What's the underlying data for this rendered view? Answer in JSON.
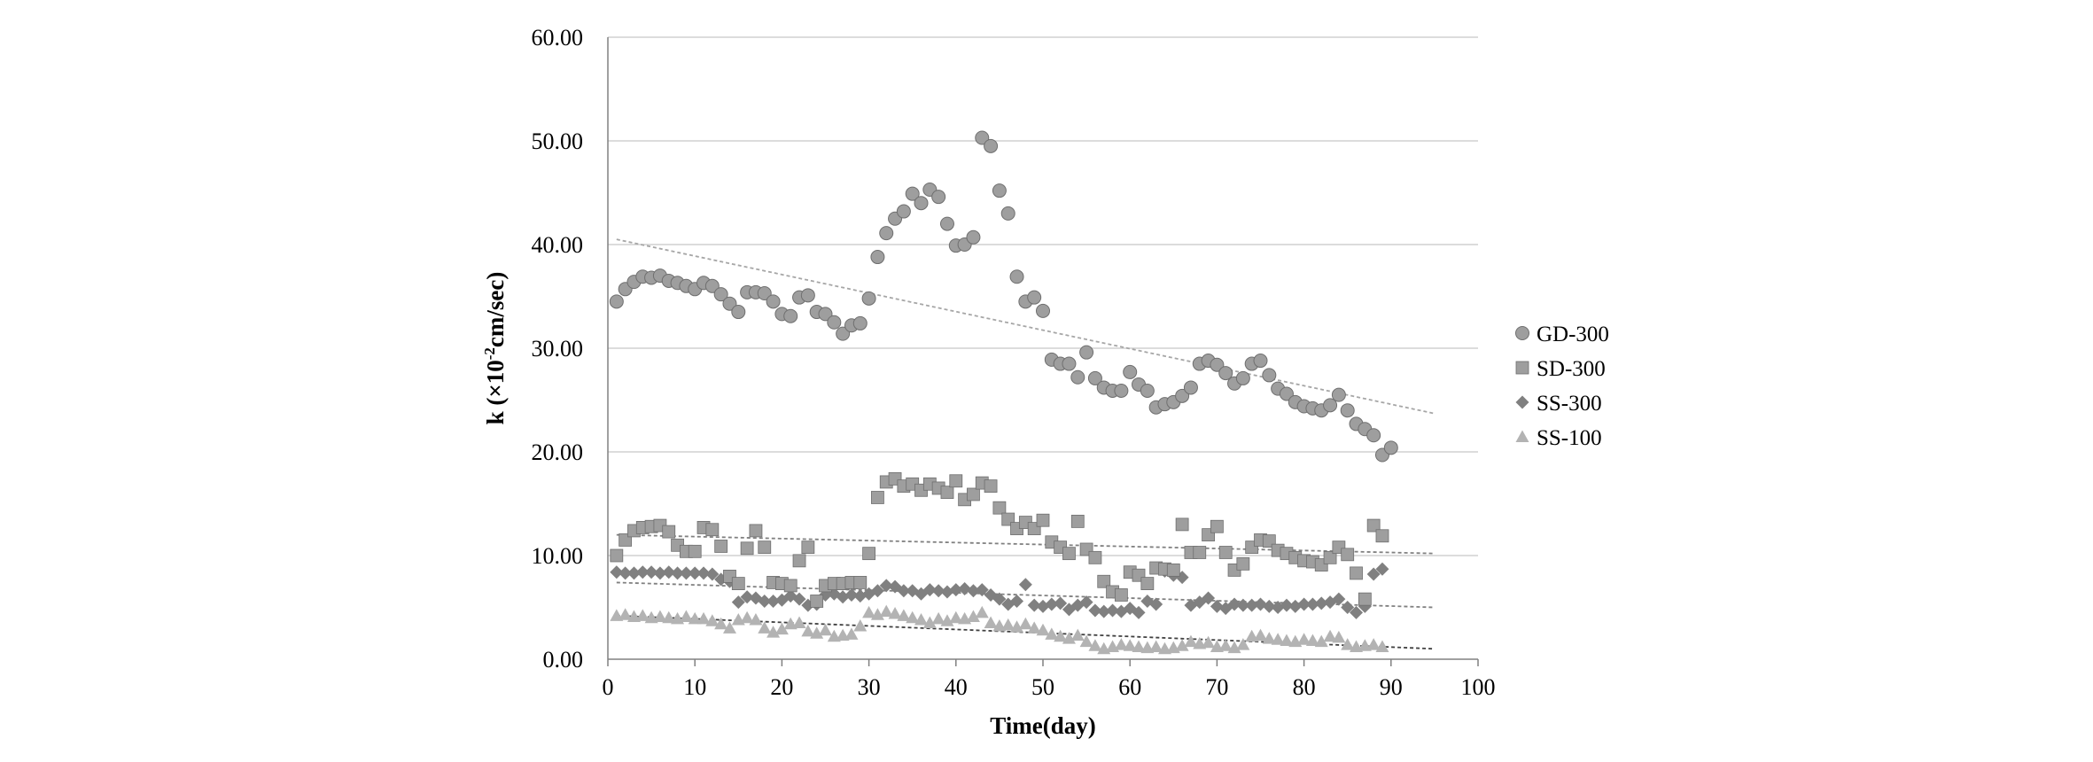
{
  "chart_data": {
    "type": "scatter",
    "xlabel": "Time(day)",
    "ylabel": "k (×10",
    "ylabel_sup": "-2",
    "ylabel_tail": "cm/sec)",
    "xlim": [
      0,
      100
    ],
    "ylim": [
      0,
      60
    ],
    "x_ticks": [
      "0",
      "10",
      "20",
      "30",
      "40",
      "50",
      "60",
      "70",
      "80",
      "90",
      "100"
    ],
    "y_ticks": [
      "0.00",
      "10.00",
      "20.00",
      "30.00",
      "40.00",
      "50.00",
      "60.00"
    ],
    "grid": "horizontal",
    "legend_position": "right",
    "series": [
      {
        "name": "GD-300",
        "marker": "circle",
        "color": "#9e9e9e",
        "x": [
          1,
          2,
          3,
          4,
          5,
          6,
          7,
          8,
          9,
          10,
          11,
          12,
          13,
          14,
          15,
          16,
          17,
          18,
          19,
          20,
          21,
          22,
          23,
          24,
          25,
          26,
          27,
          28,
          29,
          30,
          31,
          32,
          33,
          34,
          35,
          36,
          37,
          38,
          39,
          40,
          41,
          42,
          43,
          44,
          45,
          46,
          47,
          48,
          49,
          50,
          51,
          52,
          53,
          54,
          55,
          56,
          57,
          58,
          59,
          60,
          61,
          62,
          63,
          64,
          65,
          66,
          67,
          68,
          69,
          70,
          71,
          72,
          73,
          74,
          75,
          76,
          77,
          78,
          79,
          80,
          81,
          82,
          83,
          84,
          85,
          86,
          87,
          88,
          89,
          90
        ],
        "y": [
          34.5,
          35.7,
          36.4,
          36.9,
          36.8,
          37.0,
          36.5,
          36.3,
          36.0,
          35.7,
          36.3,
          36.0,
          35.2,
          34.3,
          33.5,
          35.4,
          35.4,
          35.3,
          34.5,
          33.3,
          33.1,
          34.9,
          35.1,
          33.5,
          33.3,
          32.5,
          31.4,
          32.2,
          32.4,
          34.8,
          38.8,
          41.1,
          42.5,
          43.2,
          44.9,
          44.0,
          45.3,
          44.6,
          42.0,
          39.9,
          40.0,
          40.7,
          50.3,
          49.5,
          45.2,
          43.0,
          36.9,
          34.5,
          34.9,
          33.6,
          28.9,
          28.5,
          28.5,
          27.2,
          29.6,
          27.1,
          26.2,
          25.9,
          25.9,
          27.7,
          26.5,
          25.9,
          24.3,
          24.6,
          24.8,
          25.4,
          26.2,
          28.5,
          28.8,
          28.4,
          27.6,
          26.6,
          27.1,
          28.5,
          28.8,
          27.4,
          26.1,
          25.6,
          24.8,
          24.4,
          24.2,
          24.0,
          24.5,
          25.5,
          24.0,
          22.7,
          22.2,
          21.6,
          19.7,
          20.4
        ]
      },
      {
        "name": "SD-300",
        "marker": "square",
        "color": "#9e9e9e",
        "x": [
          1,
          2,
          3,
          4,
          5,
          6,
          7,
          8,
          9,
          10,
          11,
          12,
          13,
          14,
          15,
          16,
          17,
          18,
          19,
          20,
          21,
          22,
          23,
          24,
          25,
          26,
          27,
          28,
          29,
          30,
          31,
          32,
          33,
          34,
          35,
          36,
          37,
          38,
          39,
          40,
          41,
          42,
          43,
          44,
          45,
          46,
          47,
          48,
          49,
          50,
          51,
          52,
          53,
          54,
          55,
          56,
          57,
          58,
          59,
          60,
          61,
          62,
          63,
          64,
          65,
          66,
          67,
          68,
          69,
          70,
          71,
          72,
          73,
          74,
          75,
          76,
          77,
          78,
          79,
          80,
          81,
          82,
          83,
          84,
          85,
          86,
          87,
          88,
          89
        ],
        "y": [
          10.0,
          11.5,
          12.4,
          12.7,
          12.8,
          12.9,
          12.3,
          11.0,
          10.4,
          10.4,
          12.7,
          12.5,
          10.9,
          8.0,
          7.3,
          10.7,
          12.4,
          10.8,
          7.4,
          7.3,
          7.1,
          9.5,
          10.8,
          5.6,
          7.1,
          7.3,
          7.3,
          7.4,
          7.4,
          10.2,
          15.6,
          17.1,
          17.4,
          16.7,
          16.9,
          16.3,
          16.9,
          16.5,
          16.1,
          17.2,
          15.4,
          15.9,
          17.0,
          16.7,
          14.6,
          13.5,
          12.6,
          13.2,
          12.6,
          13.4,
          11.3,
          10.8,
          10.2,
          13.3,
          10.6,
          9.8,
          7.5,
          6.5,
          6.2,
          8.4,
          8.1,
          7.3,
          8.8,
          8.7,
          8.6,
          13.0,
          10.3,
          10.3,
          12.0,
          12.8,
          10.3,
          8.6,
          9.2,
          10.8,
          11.5,
          11.4,
          10.5,
          10.2,
          9.8,
          9.5,
          9.4,
          9.1,
          9.8,
          10.8,
          10.1,
          8.3,
          5.8,
          12.9,
          11.9
        ]
      },
      {
        "name": "SS-300",
        "marker": "diamond",
        "color": "#808080",
        "x": [
          1,
          2,
          3,
          4,
          5,
          6,
          7,
          8,
          9,
          10,
          11,
          12,
          13,
          14,
          15,
          16,
          17,
          18,
          19,
          20,
          21,
          22,
          23,
          24,
          25,
          26,
          27,
          28,
          29,
          30,
          31,
          32,
          33,
          34,
          35,
          36,
          37,
          38,
          39,
          40,
          41,
          42,
          43,
          44,
          45,
          46,
          47,
          48,
          49,
          50,
          51,
          52,
          53,
          54,
          55,
          56,
          57,
          58,
          59,
          60,
          61,
          62,
          63,
          64,
          65,
          66,
          67,
          68,
          69,
          70,
          71,
          72,
          73,
          74,
          75,
          76,
          77,
          78,
          79,
          80,
          81,
          82,
          83,
          84,
          85,
          86,
          87,
          88,
          89
        ],
        "y": [
          8.4,
          8.3,
          8.3,
          8.4,
          8.4,
          8.3,
          8.4,
          8.3,
          8.3,
          8.3,
          8.3,
          8.2,
          7.7,
          7.5,
          5.5,
          6.0,
          5.9,
          5.6,
          5.6,
          5.7,
          6.1,
          5.8,
          5.2,
          5.3,
          6.2,
          6.3,
          6.0,
          6.2,
          6.1,
          6.3,
          6.6,
          7.1,
          7.0,
          6.6,
          6.6,
          6.3,
          6.7,
          6.6,
          6.5,
          6.7,
          6.8,
          6.6,
          6.7,
          6.2,
          5.8,
          5.3,
          5.6,
          7.2,
          5.2,
          5.1,
          5.3,
          5.4,
          4.8,
          5.2,
          5.5,
          4.7,
          4.6,
          4.7,
          4.6,
          4.9,
          4.5,
          5.6,
          5.3,
          8.5,
          8.1,
          7.9,
          5.2,
          5.5,
          5.9,
          5.1,
          4.9,
          5.3,
          5.2,
          5.2,
          5.3,
          5.1,
          5.0,
          5.2,
          5.1,
          5.3,
          5.3,
          5.4,
          5.5,
          5.8,
          5.0,
          4.5,
          5.1,
          8.2,
          8.7
        ]
      },
      {
        "name": "SS-100",
        "marker": "triangle",
        "color": "#b3b3b3",
        "x": [
          1,
          2,
          3,
          4,
          5,
          6,
          7,
          8,
          9,
          10,
          11,
          12,
          13,
          14,
          15,
          16,
          17,
          18,
          19,
          20,
          21,
          22,
          23,
          24,
          25,
          26,
          27,
          28,
          29,
          30,
          31,
          32,
          33,
          34,
          35,
          36,
          37,
          38,
          39,
          40,
          41,
          42,
          43,
          44,
          45,
          46,
          47,
          48,
          49,
          50,
          51,
          52,
          53,
          54,
          55,
          56,
          57,
          58,
          59,
          60,
          61,
          62,
          63,
          64,
          65,
          66,
          67,
          68,
          69,
          70,
          71,
          72,
          73,
          74,
          75,
          76,
          77,
          78,
          79,
          80,
          81,
          82,
          83,
          84,
          85,
          86,
          87,
          88,
          89
        ],
        "y": [
          4.2,
          4.3,
          4.1,
          4.2,
          4.0,
          4.1,
          4.0,
          3.9,
          4.1,
          3.9,
          3.9,
          3.7,
          3.4,
          3.0,
          3.8,
          4.0,
          3.8,
          3.0,
          2.6,
          2.9,
          3.4,
          3.5,
          2.7,
          2.5,
          2.8,
          2.2,
          2.3,
          2.4,
          3.2,
          4.5,
          4.3,
          4.6,
          4.4,
          4.2,
          4.0,
          3.8,
          3.5,
          3.9,
          3.7,
          4.0,
          3.9,
          4.1,
          4.5,
          3.5,
          3.2,
          3.3,
          3.1,
          3.4,
          3.0,
          2.8,
          2.4,
          2.2,
          2.0,
          2.3,
          1.7,
          1.3,
          1.0,
          1.2,
          1.4,
          1.3,
          1.2,
          1.1,
          1.2,
          1.0,
          1.1,
          1.3,
          1.7,
          1.5,
          1.6,
          1.2,
          1.3,
          1.1,
          1.4,
          2.2,
          2.3,
          2.0,
          1.9,
          1.8,
          1.7,
          1.9,
          1.8,
          1.7,
          2.2,
          2.1,
          1.4,
          1.2,
          1.3,
          1.4,
          1.2
        ]
      }
    ],
    "trendlines": [
      {
        "series": "GD-300",
        "x": [
          1,
          95
        ],
        "y": [
          40.5,
          23.7
        ],
        "color": "#a6a6a6"
      },
      {
        "series": "SD-300",
        "x": [
          1,
          95
        ],
        "y": [
          12.0,
          10.2
        ],
        "color": "#808080"
      },
      {
        "series": "SS-300",
        "x": [
          1,
          95
        ],
        "y": [
          7.4,
          5.0
        ],
        "color": "#808080"
      },
      {
        "series": "SS-100",
        "x": [
          1,
          95
        ],
        "y": [
          4.2,
          1.0
        ],
        "color": "#404040"
      }
    ],
    "colors": {
      "grid": "#c8c8c8",
      "axis": "#808080",
      "marker_stroke": "#6f6f6f"
    }
  }
}
